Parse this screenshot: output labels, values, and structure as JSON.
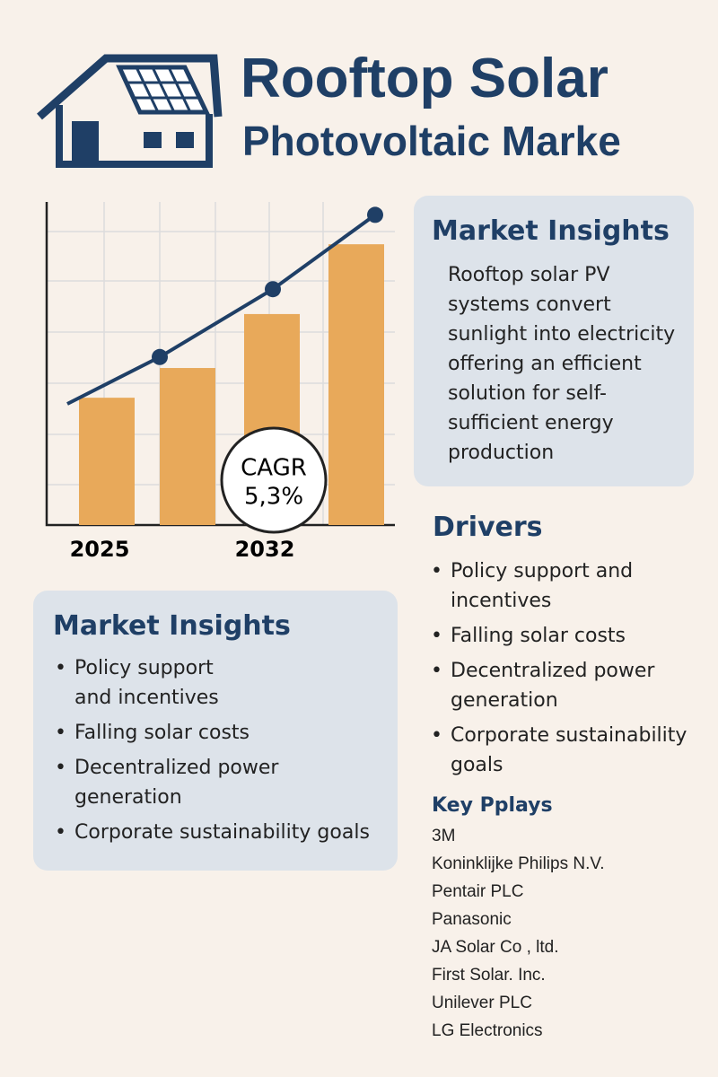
{
  "header": {
    "title_lines": [
      "Rooftop Solar",
      "Photovoltaic Marke"
    ]
  },
  "chart_data": {
    "type": "bar",
    "categories": [
      "2025",
      null,
      "2032",
      null
    ],
    "series": [
      {
        "color": "#e8a95a",
        "values": [
          39.4,
          48.6,
          65.3,
          86.9
        ]
      },
      {
        "type": "line",
        "color": "#1f3f66",
        "values": [
          37.5,
          52,
          73,
          96
        ]
      }
    ],
    "ylim": [
      0,
      100
    ],
    "annotation": [
      "CAGR",
      "5,3%"
    ]
  },
  "insights": {
    "title": "Market Insights",
    "text": [
      "Rooftop solar PV",
      "systems convert",
      "sunlight into electricity",
      "offering an efficient",
      "solution for self-",
      "sufficient energy",
      "production"
    ]
  },
  "drivers": {
    "title": "Drivers",
    "items": [
      [
        "Policy support and",
        "incentives"
      ],
      [
        "Falling solar costs"
      ],
      [
        "Decentralized power",
        "generation"
      ],
      [
        "Corporate sustainability",
        "goals"
      ]
    ]
  },
  "insights2": {
    "title": "Market Insights",
    "items": [
      [
        "Policy support",
        "and incentives"
      ],
      [
        "Falling solar costs"
      ],
      [
        "Decentralized power",
        "generation"
      ],
      [
        "Corporate sustainability goals"
      ]
    ]
  },
  "players": {
    "title": "Key Pplays",
    "items": [
      "3M",
      "Koninklijke Philips N.V.",
      "Pentair PLC",
      "Panasonic",
      "JA Solar Co , ltd.",
      "First Solar. Inc.",
      "Unilever PLC",
      "LG Electronics"
    ]
  }
}
